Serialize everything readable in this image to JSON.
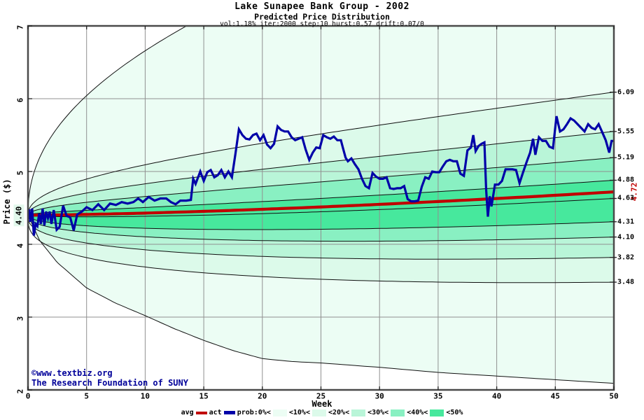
{
  "header": {
    "title": "Lake Sunapee Bank Group - 2002",
    "subtitle": "Predicted Price Distribution",
    "params": "vol:1.18% iter:2000 step:10 hurst:0.57 drift:0.07/0"
  },
  "watermark": {
    "line1": "©www.textbiz.org",
    "line2": "The Research Foundation of SUNY"
  },
  "axes": {
    "y_label": "Price ($)",
    "x_label": "Week",
    "y_ticks": [
      "7",
      "6",
      "5",
      "4",
      "3",
      "2"
    ],
    "x_ticks": [
      0,
      5,
      10,
      15,
      20,
      25,
      30,
      35,
      40,
      45,
      50
    ],
    "right_labels": [
      "6.09",
      "5.55",
      "5.19",
      "4.88",
      "4.63",
      "4.31",
      "4.10",
      "3.82",
      "3.48"
    ],
    "start_price_label": "4.40",
    "avg_end_label": "4.72"
  },
  "legend": {
    "avg_label": "avg",
    "act_label": "act",
    "prob_items": [
      {
        "label": "prob:0%<",
        "swatch": 0
      },
      {
        "label": "<10%<",
        "swatch": 1
      },
      {
        "label": "<20%<",
        "swatch": 2
      },
      {
        "label": "<30%<",
        "swatch": 3
      },
      {
        "label": "<40%<",
        "swatch": 4
      },
      {
        "label": "<50%",
        "swatch": null
      }
    ]
  },
  "colors": {
    "act": "#0101a8",
    "avg": "#c00000",
    "watermark": "#000099",
    "grid": "#909090",
    "frame": "#4a4a4a",
    "boundary": "#101010",
    "tick": "#222222",
    "start_label_bg": "#e2f8ec",
    "band_fills": [
      "#ecfdf4",
      "#dcfaea",
      "#b9f5d8",
      "#89f0c2",
      "#47e89d"
    ]
  },
  "chart_data": {
    "type": "area",
    "title": "Lake Sunapee Bank Group - 2002 — Predicted Price Distribution",
    "xlabel": "Week",
    "ylabel": "Price ($)",
    "xlim": [
      0,
      50
    ],
    "ylim": [
      2,
      7
    ],
    "grid": {
      "x_step": 5,
      "y_step": 1
    },
    "legend_position": "bottom",
    "start_price": 4.4,
    "avg_line": {
      "start": 4.4,
      "end": 4.72,
      "power": 1.5
    },
    "upper_outer": {
      "delta": 4.6,
      "exp": 0.45
    },
    "lower_outer_points": [
      [
        0,
        4.4
      ],
      [
        1,
        4.05
      ],
      [
        2.5,
        3.75
      ],
      [
        5,
        3.4
      ],
      [
        7.5,
        3.19
      ],
      [
        10,
        3.02
      ],
      [
        12.5,
        2.84
      ],
      [
        15,
        2.68
      ],
      [
        17.5,
        2.54
      ],
      [
        20,
        2.43
      ],
      [
        22.5,
        2.39
      ],
      [
        25,
        2.37
      ],
      [
        27.5,
        2.34
      ],
      [
        30,
        2.31
      ],
      [
        35,
        2.24
      ],
      [
        40,
        2.19
      ],
      [
        45,
        2.14
      ],
      [
        50,
        2.09
      ]
    ],
    "bands": [
      {
        "end": 6.09,
        "exp": 0.45
      },
      {
        "end": 5.55,
        "exp": 0.45
      },
      {
        "end": 5.19,
        "exp": 0.45
      },
      {
        "end": 4.88,
        "exp": 0.45
      },
      {
        "end": 4.63,
        "exp": 0.45
      },
      {
        "end": 4.31,
        "exp": 0.42
      },
      {
        "end": 4.1,
        "exp": 0.4
      },
      {
        "end": 3.82,
        "exp": 0.36
      },
      {
        "end": 3.48,
        "exp": 0.32
      }
    ],
    "band_color_index": [
      0,
      1,
      2,
      3,
      4,
      4,
      3,
      2,
      1,
      0
    ],
    "actual_series": [
      [
        0,
        4.4
      ],
      [
        0.1,
        4.48
      ],
      [
        0.2,
        4.31
      ],
      [
        0.35,
        4.49
      ],
      [
        0.5,
        4.12
      ],
      [
        0.65,
        4.28
      ],
      [
        0.8,
        4.25
      ],
      [
        0.95,
        4.42
      ],
      [
        1.1,
        4.28
      ],
      [
        1.25,
        4.49
      ],
      [
        1.4,
        4.26
      ],
      [
        1.55,
        4.45
      ],
      [
        1.7,
        4.36
      ],
      [
        1.85,
        4.45
      ],
      [
        2.0,
        4.28
      ],
      [
        2.2,
        4.47
      ],
      [
        2.45,
        4.2
      ],
      [
        2.7,
        4.24
      ],
      [
        3.0,
        4.53
      ],
      [
        3.3,
        4.39
      ],
      [
        3.6,
        4.37
      ],
      [
        3.9,
        4.19
      ],
      [
        4.2,
        4.41
      ],
      [
        4.6,
        4.45
      ],
      [
        5.0,
        4.51
      ],
      [
        5.5,
        4.47
      ],
      [
        6.0,
        4.55
      ],
      [
        6.5,
        4.47
      ],
      [
        7.0,
        4.56
      ],
      [
        7.5,
        4.54
      ],
      [
        8.0,
        4.58
      ],
      [
        8.5,
        4.56
      ],
      [
        9.0,
        4.58
      ],
      [
        9.4,
        4.63
      ],
      [
        9.8,
        4.58
      ],
      [
        10.3,
        4.65
      ],
      [
        10.8,
        4.6
      ],
      [
        11.3,
        4.63
      ],
      [
        11.8,
        4.63
      ],
      [
        12.2,
        4.58
      ],
      [
        12.6,
        4.55
      ],
      [
        13.0,
        4.6
      ],
      [
        13.5,
        4.6
      ],
      [
        13.9,
        4.61
      ],
      [
        14.1,
        4.9
      ],
      [
        14.3,
        4.83
      ],
      [
        14.7,
        5.0
      ],
      [
        15.0,
        4.87
      ],
      [
        15.3,
        4.99
      ],
      [
        15.6,
        5.02
      ],
      [
        15.9,
        4.92
      ],
      [
        16.2,
        4.95
      ],
      [
        16.5,
        5.02
      ],
      [
        16.8,
        4.92
      ],
      [
        17.1,
        5.0
      ],
      [
        17.4,
        4.92
      ],
      [
        17.7,
        5.24
      ],
      [
        18.0,
        5.58
      ],
      [
        18.3,
        5.5
      ],
      [
        18.6,
        5.45
      ],
      [
        18.9,
        5.44
      ],
      [
        19.2,
        5.5
      ],
      [
        19.5,
        5.52
      ],
      [
        19.8,
        5.43
      ],
      [
        20.1,
        5.5
      ],
      [
        20.4,
        5.37
      ],
      [
        20.7,
        5.32
      ],
      [
        21.0,
        5.38
      ],
      [
        21.3,
        5.62
      ],
      [
        21.6,
        5.57
      ],
      [
        21.9,
        5.55
      ],
      [
        22.2,
        5.55
      ],
      [
        22.5,
        5.47
      ],
      [
        22.8,
        5.43
      ],
      [
        23.1,
        5.45
      ],
      [
        23.4,
        5.47
      ],
      [
        23.7,
        5.3
      ],
      [
        24.0,
        5.16
      ],
      [
        24.3,
        5.26
      ],
      [
        24.6,
        5.33
      ],
      [
        24.9,
        5.32
      ],
      [
        25.2,
        5.5
      ],
      [
        25.5,
        5.47
      ],
      [
        25.8,
        5.45
      ],
      [
        26.1,
        5.48
      ],
      [
        26.4,
        5.43
      ],
      [
        26.7,
        5.43
      ],
      [
        26.9,
        5.31
      ],
      [
        27.1,
        5.19
      ],
      [
        27.3,
        5.14
      ],
      [
        27.6,
        5.18
      ],
      [
        27.9,
        5.1
      ],
      [
        28.2,
        5.03
      ],
      [
        28.5,
        4.9
      ],
      [
        28.8,
        4.8
      ],
      [
        29.1,
        4.77
      ],
      [
        29.4,
        4.98
      ],
      [
        29.7,
        4.93
      ],
      [
        30.0,
        4.9
      ],
      [
        30.3,
        4.9
      ],
      [
        30.6,
        4.92
      ],
      [
        30.9,
        4.77
      ],
      [
        31.2,
        4.76
      ],
      [
        31.5,
        4.77
      ],
      [
        31.8,
        4.77
      ],
      [
        32.1,
        4.8
      ],
      [
        32.4,
        4.62
      ],
      [
        32.7,
        4.59
      ],
      [
        33.0,
        4.59
      ],
      [
        33.3,
        4.6
      ],
      [
        33.6,
        4.79
      ],
      [
        33.9,
        4.92
      ],
      [
        34.2,
        4.9
      ],
      [
        34.5,
        5.0
      ],
      [
        34.8,
        4.99
      ],
      [
        35.1,
        4.99
      ],
      [
        35.4,
        5.07
      ],
      [
        35.7,
        5.14
      ],
      [
        36.0,
        5.16
      ],
      [
        36.3,
        5.14
      ],
      [
        36.6,
        5.14
      ],
      [
        36.9,
        4.97
      ],
      [
        37.2,
        4.94
      ],
      [
        37.5,
        5.29
      ],
      [
        37.8,
        5.33
      ],
      [
        38.0,
        5.5
      ],
      [
        38.2,
        5.28
      ],
      [
        38.45,
        5.35
      ],
      [
        38.7,
        5.38
      ],
      [
        38.95,
        5.4
      ],
      [
        39.1,
        4.75
      ],
      [
        39.25,
        4.38
      ],
      [
        39.4,
        4.66
      ],
      [
        39.55,
        4.52
      ],
      [
        39.85,
        4.82
      ],
      [
        40.15,
        4.82
      ],
      [
        40.45,
        4.87
      ],
      [
        40.75,
        5.03
      ],
      [
        41.05,
        5.03
      ],
      [
        41.35,
        5.03
      ],
      [
        41.65,
        5.02
      ],
      [
        41.95,
        4.84
      ],
      [
        42.25,
        4.99
      ],
      [
        42.55,
        5.13
      ],
      [
        42.85,
        5.26
      ],
      [
        43.1,
        5.45
      ],
      [
        43.3,
        5.23
      ],
      [
        43.6,
        5.47
      ],
      [
        43.9,
        5.42
      ],
      [
        44.2,
        5.42
      ],
      [
        44.5,
        5.34
      ],
      [
        44.8,
        5.32
      ],
      [
        45.1,
        5.76
      ],
      [
        45.4,
        5.55
      ],
      [
        45.7,
        5.58
      ],
      [
        46.0,
        5.65
      ],
      [
        46.3,
        5.73
      ],
      [
        46.6,
        5.7
      ],
      [
        46.9,
        5.65
      ],
      [
        47.2,
        5.6
      ],
      [
        47.5,
        5.55
      ],
      [
        47.8,
        5.65
      ],
      [
        48.1,
        5.6
      ],
      [
        48.4,
        5.58
      ],
      [
        48.7,
        5.65
      ],
      [
        49.0,
        5.54
      ],
      [
        49.3,
        5.43
      ],
      [
        49.6,
        5.26
      ],
      [
        49.8,
        5.42
      ],
      [
        50,
        5.42
      ]
    ]
  }
}
